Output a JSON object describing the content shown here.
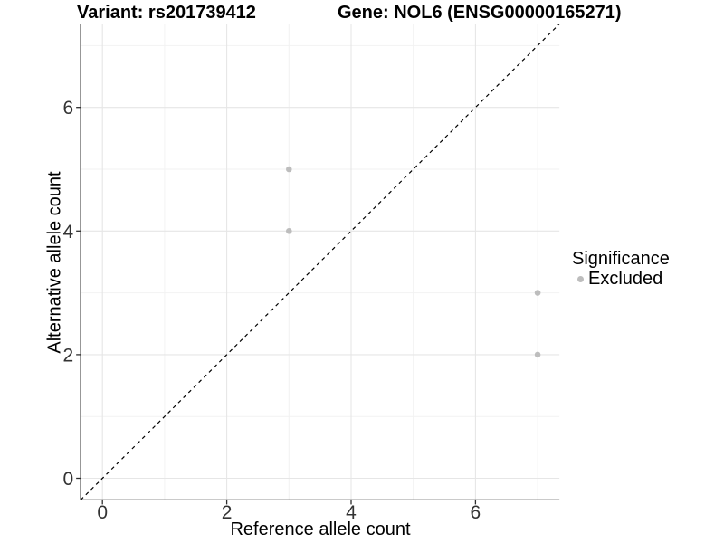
{
  "figure": {
    "title_left": "Variant: rs201739412",
    "title_right": "Gene: NOL6 (ENSG00000165271)"
  },
  "chart_data": {
    "type": "scatter",
    "title": "Variant: rs201739412    Gene: NOL6 (ENSG00000165271)",
    "xlabel": "Reference allele count",
    "ylabel": "Alternative allele count",
    "xlim": [
      -0.35,
      7.35
    ],
    "ylim": [
      -0.35,
      7.35
    ],
    "xticks": [
      0,
      2,
      4,
      6
    ],
    "yticks": [
      0,
      2,
      4,
      6
    ],
    "minor_gridlines": [
      1,
      3,
      5,
      7
    ],
    "grid": "major and minor gridlines, light gray on white panel",
    "identity_line": {
      "type": "y=x",
      "style": "dashed",
      "color": "#000000"
    },
    "series": [
      {
        "name": "Excluded",
        "color": "#bdbdbd",
        "points": [
          [
            3,
            5
          ],
          [
            3,
            4
          ],
          [
            7,
            3
          ],
          [
            7,
            2
          ]
        ]
      }
    ],
    "legend": {
      "title": "Significance",
      "position": "right",
      "entries": [
        {
          "label": "Excluded",
          "color": "#bdbdbd"
        }
      ]
    },
    "colors": {
      "grid_major": "#e6e6e6",
      "grid_minor": "#f2f2f2",
      "axis_line": "#2e2e2e",
      "tick_label": "#333333",
      "point": "#bdbdbd"
    }
  }
}
